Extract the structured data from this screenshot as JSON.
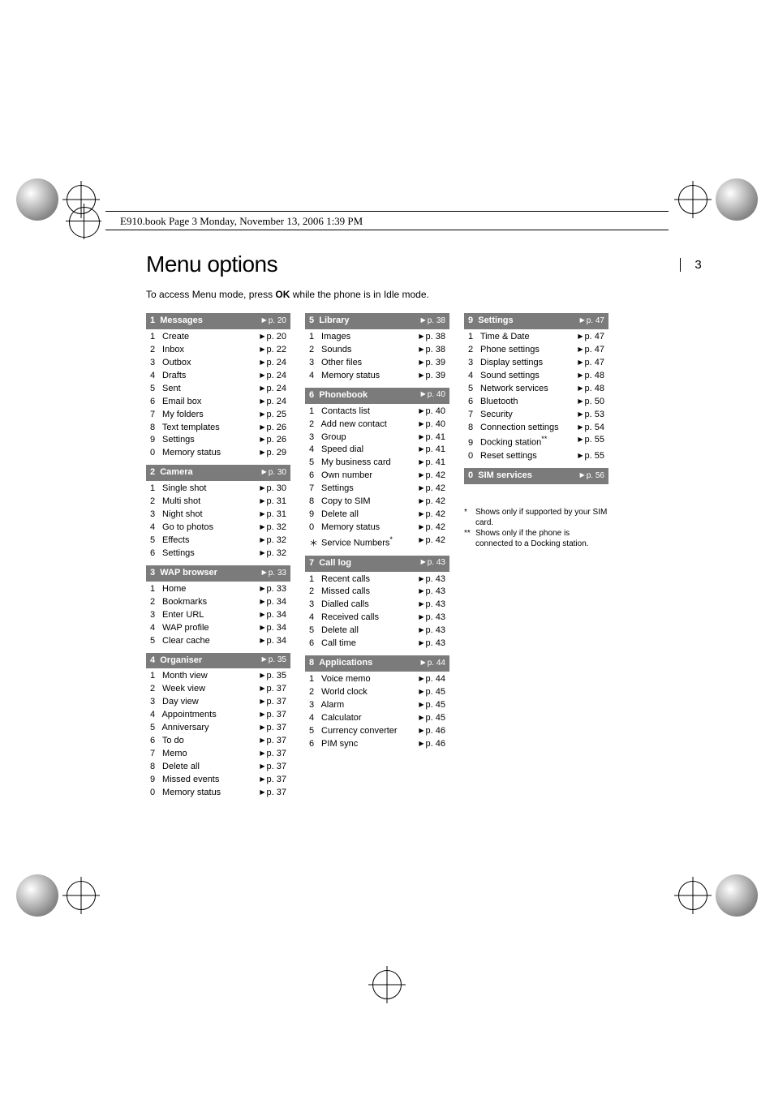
{
  "header_line": "E910.book  Page 3  Monday, November 13, 2006  1:39 PM",
  "page_number": "3",
  "title": "Menu options",
  "intro_pre": "To access Menu mode, press ",
  "intro_bold": "OK",
  "intro_post": " while the phone is in Idle mode.",
  "columns": [
    [
      {
        "num": "1",
        "title": "Messages",
        "page": "p. 20",
        "items": [
          {
            "n": "1",
            "label": "Create",
            "page": "p. 20"
          },
          {
            "n": "2",
            "label": "Inbox",
            "page": "p. 22"
          },
          {
            "n": "3",
            "label": "Outbox",
            "page": "p. 24"
          },
          {
            "n": "4",
            "label": "Drafts",
            "page": "p. 24"
          },
          {
            "n": "5",
            "label": "Sent",
            "page": "p. 24"
          },
          {
            "n": "6",
            "label": "Email box",
            "page": "p. 24"
          },
          {
            "n": "7",
            "label": "My folders",
            "page": "p. 25"
          },
          {
            "n": "8",
            "label": "Text templates",
            "page": "p. 26"
          },
          {
            "n": "9",
            "label": "Settings",
            "page": "p. 26"
          },
          {
            "n": "0",
            "label": "Memory status",
            "page": "p. 29"
          }
        ]
      },
      {
        "num": "2",
        "title": "Camera",
        "page": "p. 30",
        "items": [
          {
            "n": "1",
            "label": "Single shot",
            "page": "p. 30"
          },
          {
            "n": "2",
            "label": "Multi shot",
            "page": "p. 31"
          },
          {
            "n": "3",
            "label": "Night shot",
            "page": "p. 31"
          },
          {
            "n": "4",
            "label": "Go to photos",
            "page": "p. 32"
          },
          {
            "n": "5",
            "label": "Effects",
            "page": "p. 32"
          },
          {
            "n": "6",
            "label": "Settings",
            "page": "p. 32"
          }
        ]
      },
      {
        "num": "3",
        "title": "WAP browser",
        "page": "p. 33",
        "items": [
          {
            "n": "1",
            "label": "Home",
            "page": "p. 33"
          },
          {
            "n": "2",
            "label": "Bookmarks",
            "page": "p. 34"
          },
          {
            "n": "3",
            "label": "Enter URL",
            "page": "p. 34"
          },
          {
            "n": "4",
            "label": "WAP profile",
            "page": "p. 34"
          },
          {
            "n": "5",
            "label": "Clear cache",
            "page": "p. 34"
          }
        ]
      },
      {
        "num": "4",
        "title": "Organiser",
        "page": "p. 35",
        "items": [
          {
            "n": "1",
            "label": "Month view",
            "page": "p. 35"
          },
          {
            "n": "2",
            "label": "Week view",
            "page": "p. 37"
          },
          {
            "n": "3",
            "label": "Day view",
            "page": "p. 37"
          },
          {
            "n": "4",
            "label": "Appointments",
            "page": "p. 37"
          },
          {
            "n": "5",
            "label": "Anniversary",
            "page": "p. 37"
          },
          {
            "n": "6",
            "label": "To do",
            "page": "p. 37"
          },
          {
            "n": "7",
            "label": "Memo",
            "page": "p. 37"
          },
          {
            "n": "8",
            "label": "Delete all",
            "page": "p. 37"
          },
          {
            "n": "9",
            "label": "Missed events",
            "page": "p. 37"
          },
          {
            "n": "0",
            "label": "Memory status",
            "page": "p. 37"
          }
        ]
      }
    ],
    [
      {
        "num": "5",
        "title": "Library",
        "page": "p. 38",
        "items": [
          {
            "n": "1",
            "label": "Images",
            "page": "p. 38"
          },
          {
            "n": "2",
            "label": "Sounds",
            "page": "p. 38"
          },
          {
            "n": "3",
            "label": "Other files",
            "page": "p. 39"
          },
          {
            "n": "4",
            "label": "Memory status",
            "page": "p. 39"
          }
        ]
      },
      {
        "num": "6",
        "title": "Phonebook",
        "page": "p. 40",
        "items": [
          {
            "n": "1",
            "label": "Contacts list",
            "page": "p. 40"
          },
          {
            "n": "2",
            "label": "Add new contact",
            "page": "p. 40"
          },
          {
            "n": "3",
            "label": "Group",
            "page": "p. 41"
          },
          {
            "n": "4",
            "label": "Speed dial",
            "page": "p. 41"
          },
          {
            "n": "5",
            "label": "My business card",
            "page": "p. 41"
          },
          {
            "n": "6",
            "label": "Own number",
            "page": "p. 42"
          },
          {
            "n": "7",
            "label": "Settings",
            "page": "p. 42"
          },
          {
            "n": "8",
            "label": "Copy to SIM",
            "page": "p. 42"
          },
          {
            "n": "9",
            "label": "Delete all",
            "page": "p. 42"
          },
          {
            "n": "0",
            "label": "Memory status",
            "page": "p. 42"
          },
          {
            "n": "",
            "label": "Service Numbers",
            "sup": "*",
            "page": "p. 42",
            "star": true
          }
        ]
      },
      {
        "num": "7",
        "title": "Call log",
        "page": "p. 43",
        "items": [
          {
            "n": "1",
            "label": "Recent calls",
            "page": "p. 43"
          },
          {
            "n": "2",
            "label": "Missed calls",
            "page": "p. 43"
          },
          {
            "n": "3",
            "label": "Dialled calls",
            "page": "p. 43"
          },
          {
            "n": "4",
            "label": "Received calls",
            "page": "p. 43"
          },
          {
            "n": "5",
            "label": "Delete all",
            "page": "p. 43"
          },
          {
            "n": "6",
            "label": "Call time",
            "page": "p. 43"
          }
        ]
      },
      {
        "num": "8",
        "title": "Applications",
        "page": "p. 44",
        "items": [
          {
            "n": "1",
            "label": "Voice memo",
            "page": "p. 44"
          },
          {
            "n": "2",
            "label": "World clock",
            "page": "p. 45"
          },
          {
            "n": "3",
            "label": "Alarm",
            "page": "p. 45"
          },
          {
            "n": "4",
            "label": "Calculator",
            "page": "p. 45"
          },
          {
            "n": "5",
            "label": "Currency converter",
            "page": "p. 46"
          },
          {
            "n": "6",
            "label": "PIM sync",
            "page": "p. 46"
          }
        ]
      }
    ],
    [
      {
        "num": "9",
        "title": "Settings",
        "page": "p. 47",
        "items": [
          {
            "n": "1",
            "label": "Time & Date",
            "page": "p. 47"
          },
          {
            "n": "2",
            "label": "Phone settings",
            "page": "p. 47"
          },
          {
            "n": "3",
            "label": "Display settings",
            "page": "p. 47"
          },
          {
            "n": "4",
            "label": "Sound settings",
            "page": "p. 48"
          },
          {
            "n": "5",
            "label": "Network services",
            "page": "p. 48"
          },
          {
            "n": "6",
            "label": "Bluetooth",
            "page": "p. 50"
          },
          {
            "n": "7",
            "label": "Security",
            "page": "p. 53"
          },
          {
            "n": "8",
            "label": "Connection settings",
            "page": "p. 54"
          },
          {
            "n": "9",
            "label": "Docking station",
            "sup": "**",
            "page": "p. 55"
          },
          {
            "n": "0",
            "label": "Reset settings",
            "page": "p. 55"
          }
        ]
      },
      {
        "num": "0",
        "title": "SIM services",
        "page": "p. 56",
        "items": []
      }
    ]
  ],
  "footnotes": [
    {
      "mark": "*",
      "text": "Shows only if supported by your SIM card."
    },
    {
      "mark": "**",
      "text": "Shows only if the phone is connected to a Docking station."
    }
  ]
}
